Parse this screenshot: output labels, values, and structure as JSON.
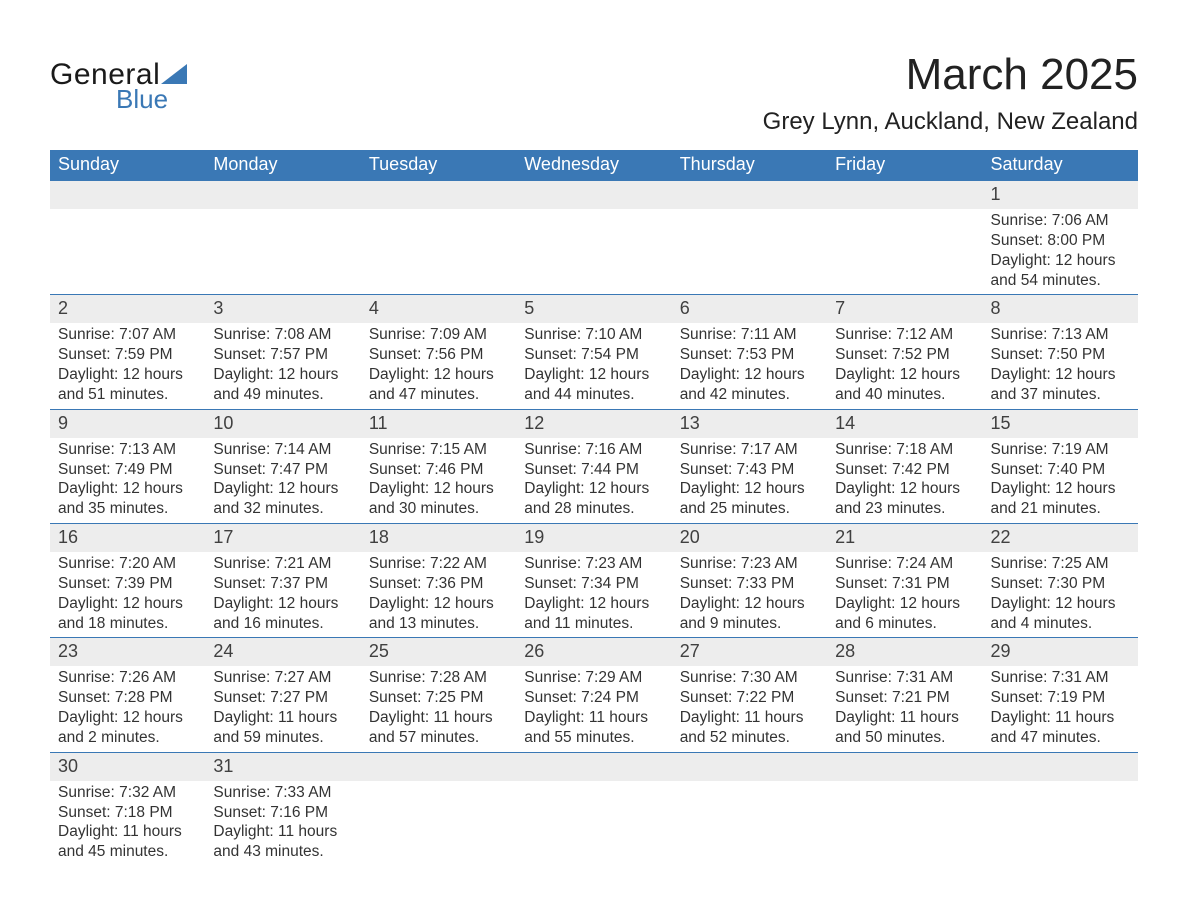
{
  "logo": {
    "word1": "General",
    "word2": "Blue",
    "triangle_color": "#3a78b5",
    "text_color": "#1a1a1a"
  },
  "colors": {
    "header_bg": "#3a78b5",
    "header_fg": "#ffffff",
    "daynum_bg": "#ededed",
    "daynum_fg": "#404040",
    "row_border": "#3a78b5",
    "body_text": "#333333",
    "page_bg": "#ffffff"
  },
  "typography": {
    "title_size_pt": 33,
    "location_size_pt": 18,
    "header_size_pt": 14,
    "cell_size_pt": 12,
    "daynum_size_pt": 14
  },
  "title": {
    "month": "March 2025",
    "location": "Grey Lynn, Auckland, New Zealand"
  },
  "weekdays": [
    "Sunday",
    "Monday",
    "Tuesday",
    "Wednesday",
    "Thursday",
    "Friday",
    "Saturday"
  ],
  "calendar": {
    "type": "table",
    "columns": 7,
    "weeks": [
      [
        null,
        null,
        null,
        null,
        null,
        null,
        {
          "n": "1",
          "sunrise": "Sunrise: 7:06 AM",
          "sunset": "Sunset: 8:00 PM",
          "day1": "Daylight: 12 hours",
          "day2": "and 54 minutes."
        }
      ],
      [
        {
          "n": "2",
          "sunrise": "Sunrise: 7:07 AM",
          "sunset": "Sunset: 7:59 PM",
          "day1": "Daylight: 12 hours",
          "day2": "and 51 minutes."
        },
        {
          "n": "3",
          "sunrise": "Sunrise: 7:08 AM",
          "sunset": "Sunset: 7:57 PM",
          "day1": "Daylight: 12 hours",
          "day2": "and 49 minutes."
        },
        {
          "n": "4",
          "sunrise": "Sunrise: 7:09 AM",
          "sunset": "Sunset: 7:56 PM",
          "day1": "Daylight: 12 hours",
          "day2": "and 47 minutes."
        },
        {
          "n": "5",
          "sunrise": "Sunrise: 7:10 AM",
          "sunset": "Sunset: 7:54 PM",
          "day1": "Daylight: 12 hours",
          "day2": "and 44 minutes."
        },
        {
          "n": "6",
          "sunrise": "Sunrise: 7:11 AM",
          "sunset": "Sunset: 7:53 PM",
          "day1": "Daylight: 12 hours",
          "day2": "and 42 minutes."
        },
        {
          "n": "7",
          "sunrise": "Sunrise: 7:12 AM",
          "sunset": "Sunset: 7:52 PM",
          "day1": "Daylight: 12 hours",
          "day2": "and 40 minutes."
        },
        {
          "n": "8",
          "sunrise": "Sunrise: 7:13 AM",
          "sunset": "Sunset: 7:50 PM",
          "day1": "Daylight: 12 hours",
          "day2": "and 37 minutes."
        }
      ],
      [
        {
          "n": "9",
          "sunrise": "Sunrise: 7:13 AM",
          "sunset": "Sunset: 7:49 PM",
          "day1": "Daylight: 12 hours",
          "day2": "and 35 minutes."
        },
        {
          "n": "10",
          "sunrise": "Sunrise: 7:14 AM",
          "sunset": "Sunset: 7:47 PM",
          "day1": "Daylight: 12 hours",
          "day2": "and 32 minutes."
        },
        {
          "n": "11",
          "sunrise": "Sunrise: 7:15 AM",
          "sunset": "Sunset: 7:46 PM",
          "day1": "Daylight: 12 hours",
          "day2": "and 30 minutes."
        },
        {
          "n": "12",
          "sunrise": "Sunrise: 7:16 AM",
          "sunset": "Sunset: 7:44 PM",
          "day1": "Daylight: 12 hours",
          "day2": "and 28 minutes."
        },
        {
          "n": "13",
          "sunrise": "Sunrise: 7:17 AM",
          "sunset": "Sunset: 7:43 PM",
          "day1": "Daylight: 12 hours",
          "day2": "and 25 minutes."
        },
        {
          "n": "14",
          "sunrise": "Sunrise: 7:18 AM",
          "sunset": "Sunset: 7:42 PM",
          "day1": "Daylight: 12 hours",
          "day2": "and 23 minutes."
        },
        {
          "n": "15",
          "sunrise": "Sunrise: 7:19 AM",
          "sunset": "Sunset: 7:40 PM",
          "day1": "Daylight: 12 hours",
          "day2": "and 21 minutes."
        }
      ],
      [
        {
          "n": "16",
          "sunrise": "Sunrise: 7:20 AM",
          "sunset": "Sunset: 7:39 PM",
          "day1": "Daylight: 12 hours",
          "day2": "and 18 minutes."
        },
        {
          "n": "17",
          "sunrise": "Sunrise: 7:21 AM",
          "sunset": "Sunset: 7:37 PM",
          "day1": "Daylight: 12 hours",
          "day2": "and 16 minutes."
        },
        {
          "n": "18",
          "sunrise": "Sunrise: 7:22 AM",
          "sunset": "Sunset: 7:36 PM",
          "day1": "Daylight: 12 hours",
          "day2": "and 13 minutes."
        },
        {
          "n": "19",
          "sunrise": "Sunrise: 7:23 AM",
          "sunset": "Sunset: 7:34 PM",
          "day1": "Daylight: 12 hours",
          "day2": "and 11 minutes."
        },
        {
          "n": "20",
          "sunrise": "Sunrise: 7:23 AM",
          "sunset": "Sunset: 7:33 PM",
          "day1": "Daylight: 12 hours",
          "day2": "and 9 minutes."
        },
        {
          "n": "21",
          "sunrise": "Sunrise: 7:24 AM",
          "sunset": "Sunset: 7:31 PM",
          "day1": "Daylight: 12 hours",
          "day2": "and 6 minutes."
        },
        {
          "n": "22",
          "sunrise": "Sunrise: 7:25 AM",
          "sunset": "Sunset: 7:30 PM",
          "day1": "Daylight: 12 hours",
          "day2": "and 4 minutes."
        }
      ],
      [
        {
          "n": "23",
          "sunrise": "Sunrise: 7:26 AM",
          "sunset": "Sunset: 7:28 PM",
          "day1": "Daylight: 12 hours",
          "day2": "and 2 minutes."
        },
        {
          "n": "24",
          "sunrise": "Sunrise: 7:27 AM",
          "sunset": "Sunset: 7:27 PM",
          "day1": "Daylight: 11 hours",
          "day2": "and 59 minutes."
        },
        {
          "n": "25",
          "sunrise": "Sunrise: 7:28 AM",
          "sunset": "Sunset: 7:25 PM",
          "day1": "Daylight: 11 hours",
          "day2": "and 57 minutes."
        },
        {
          "n": "26",
          "sunrise": "Sunrise: 7:29 AM",
          "sunset": "Sunset: 7:24 PM",
          "day1": "Daylight: 11 hours",
          "day2": "and 55 minutes."
        },
        {
          "n": "27",
          "sunrise": "Sunrise: 7:30 AM",
          "sunset": "Sunset: 7:22 PM",
          "day1": "Daylight: 11 hours",
          "day2": "and 52 minutes."
        },
        {
          "n": "28",
          "sunrise": "Sunrise: 7:31 AM",
          "sunset": "Sunset: 7:21 PM",
          "day1": "Daylight: 11 hours",
          "day2": "and 50 minutes."
        },
        {
          "n": "29",
          "sunrise": "Sunrise: 7:31 AM",
          "sunset": "Sunset: 7:19 PM",
          "day1": "Daylight: 11 hours",
          "day2": "and 47 minutes."
        }
      ],
      [
        {
          "n": "30",
          "sunrise": "Sunrise: 7:32 AM",
          "sunset": "Sunset: 7:18 PM",
          "day1": "Daylight: 11 hours",
          "day2": "and 45 minutes."
        },
        {
          "n": "31",
          "sunrise": "Sunrise: 7:33 AM",
          "sunset": "Sunset: 7:16 PM",
          "day1": "Daylight: 11 hours",
          "day2": "and 43 minutes."
        },
        null,
        null,
        null,
        null,
        null
      ]
    ]
  }
}
